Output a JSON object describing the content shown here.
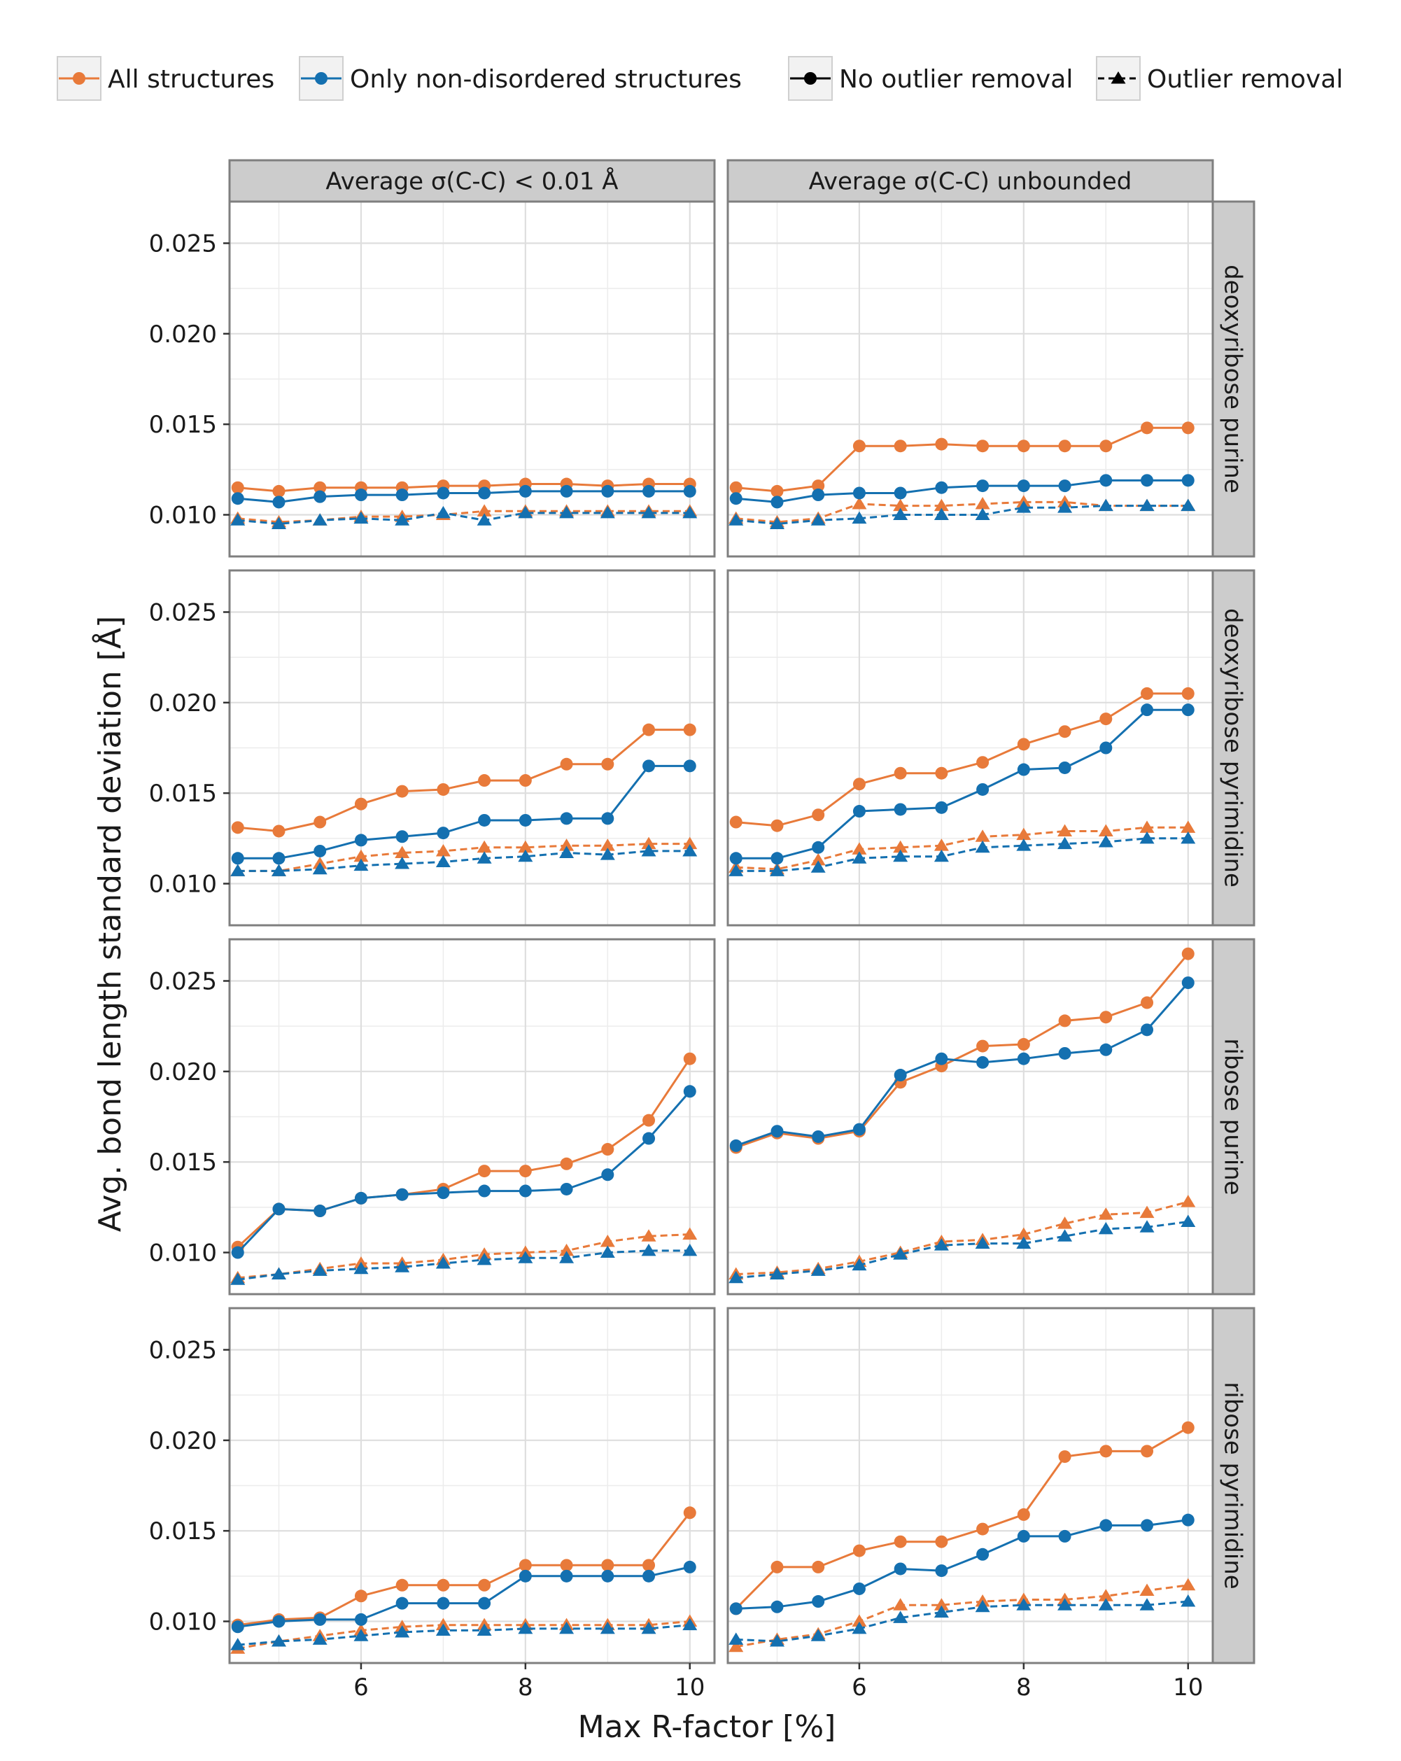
{
  "legend": {
    "entries": [
      {
        "label": "All structures",
        "kind": "color",
        "color": "#E87A3A"
      },
      {
        "label": "Only non-disordered structures",
        "kind": "color",
        "color": "#1470B0"
      },
      {
        "label": "No outlier removal",
        "kind": "style",
        "marker": "circle",
        "dash": "solid"
      },
      {
        "label": "Outlier removal",
        "kind": "style",
        "marker": "triangle",
        "dash": "dashed"
      }
    ]
  },
  "chart_data": {
    "type": "line",
    "xlabel": "Max R-factor [%]",
    "ylabel": "Avg. bond length standard deviation [Å]",
    "xlim": [
      4.4,
      10.3
    ],
    "ylim": [
      0.0077,
      0.0273
    ],
    "xticks": [
      6,
      8,
      10
    ],
    "xtick_labels": [
      "6",
      "8",
      "10"
    ],
    "yticks": [
      0.01,
      0.015,
      0.02,
      0.025
    ],
    "ytick_labels": [
      "0.010",
      "0.015",
      "0.020",
      "0.025"
    ],
    "grid": true,
    "legend_position": "top",
    "x": [
      4.5,
      5,
      5.5,
      6,
      6.5,
      7,
      7.5,
      8,
      8.5,
      9,
      9.5,
      10
    ],
    "col_labels": [
      "Average σ(C-C) < 0.01 Å",
      "Average σ(C-C) unbounded"
    ],
    "row_labels": [
      "deoxyribose purine",
      "deoxyribose pyrimidine",
      "ribose purine",
      "ribose pyrimidine"
    ],
    "colors": {
      "All structures": "#E87A3A",
      "Only non-disordered structures": "#1470B0"
    },
    "panels": [
      {
        "row": 0,
        "col": 0,
        "series": [
          {
            "group": "All structures",
            "style": "No outlier removal",
            "values": [
              0.0115,
              0.0113,
              0.0115,
              0.0115,
              0.0115,
              0.0116,
              0.0116,
              0.0117,
              0.0117,
              0.0116,
              0.0117,
              0.0117
            ]
          },
          {
            "group": "Only non-disordered structures",
            "style": "No outlier removal",
            "values": [
              0.0109,
              0.0107,
              0.011,
              0.0111,
              0.0111,
              0.0112,
              0.0112,
              0.0113,
              0.0113,
              0.0113,
              0.0113,
              0.0113
            ]
          },
          {
            "group": "All structures",
            "style": "Outlier removal",
            "values": [
              0.0098,
              0.0096,
              0.0097,
              0.0099,
              0.0099,
              0.01,
              0.0102,
              0.0102,
              0.0102,
              0.0102,
              0.0102,
              0.0102
            ]
          },
          {
            "group": "Only non-disordered structures",
            "style": "Outlier removal",
            "values": [
              0.0097,
              0.0095,
              0.0097,
              0.0098,
              0.0097,
              0.0101,
              0.0097,
              0.0101,
              0.0101,
              0.0101,
              0.0101,
              0.0101
            ]
          }
        ]
      },
      {
        "row": 0,
        "col": 1,
        "series": [
          {
            "group": "All structures",
            "style": "No outlier removal",
            "values": [
              0.0115,
              0.0113,
              0.0116,
              0.0138,
              0.0138,
              0.0139,
              0.0138,
              0.0138,
              0.0138,
              0.0138,
              0.0148,
              0.0148
            ]
          },
          {
            "group": "Only non-disordered structures",
            "style": "No outlier removal",
            "values": [
              0.0109,
              0.0107,
              0.0111,
              0.0112,
              0.0112,
              0.0115,
              0.0116,
              0.0116,
              0.0116,
              0.0119,
              0.0119,
              0.0119
            ]
          },
          {
            "group": "All structures",
            "style": "Outlier removal",
            "values": [
              0.0098,
              0.0096,
              0.0098,
              0.0106,
              0.0105,
              0.0105,
              0.0106,
              0.0107,
              0.0107,
              0.0105,
              0.0105,
              0.0105
            ]
          },
          {
            "group": "Only non-disordered structures",
            "style": "Outlier removal",
            "values": [
              0.0097,
              0.0095,
              0.0097,
              0.0098,
              0.01,
              0.01,
              0.01,
              0.0104,
              0.0104,
              0.0105,
              0.0105,
              0.0105
            ]
          }
        ]
      },
      {
        "row": 1,
        "col": 0,
        "series": [
          {
            "group": "All structures",
            "style": "No outlier removal",
            "values": [
              0.0131,
              0.0129,
              0.0134,
              0.0144,
              0.0151,
              0.0152,
              0.0157,
              0.0157,
              0.0166,
              0.0166,
              0.0185,
              0.0185
            ]
          },
          {
            "group": "Only non-disordered structures",
            "style": "No outlier removal",
            "values": [
              0.0114,
              0.0114,
              0.0118,
              0.0124,
              0.0126,
              0.0128,
              0.0135,
              0.0135,
              0.0136,
              0.0136,
              0.0165,
              0.0165
            ]
          },
          {
            "group": "All structures",
            "style": "Outlier removal",
            "values": [
              0.0107,
              0.0107,
              0.0111,
              0.0115,
              0.0117,
              0.0118,
              0.012,
              0.012,
              0.0121,
              0.0121,
              0.0122,
              0.0122
            ]
          },
          {
            "group": "Only non-disordered structures",
            "style": "Outlier removal",
            "values": [
              0.0107,
              0.0107,
              0.0108,
              0.011,
              0.0111,
              0.0112,
              0.0114,
              0.0115,
              0.0117,
              0.0116,
              0.0118,
              0.0118
            ]
          }
        ]
      },
      {
        "row": 1,
        "col": 1,
        "series": [
          {
            "group": "All structures",
            "style": "No outlier removal",
            "values": [
              0.0134,
              0.0132,
              0.0138,
              0.0155,
              0.0161,
              0.0161,
              0.0167,
              0.0177,
              0.0184,
              0.0191,
              0.0205,
              0.0205
            ]
          },
          {
            "group": "Only non-disordered structures",
            "style": "No outlier removal",
            "values": [
              0.0114,
              0.0114,
              0.012,
              0.014,
              0.0141,
              0.0142,
              0.0152,
              0.0163,
              0.0164,
              0.0175,
              0.0196,
              0.0196
            ]
          },
          {
            "group": "All structures",
            "style": "Outlier removal",
            "values": [
              0.0109,
              0.0108,
              0.0113,
              0.0119,
              0.012,
              0.0121,
              0.0126,
              0.0127,
              0.0129,
              0.0129,
              0.0131,
              0.0131
            ]
          },
          {
            "group": "Only non-disordered structures",
            "style": "Outlier removal",
            "values": [
              0.0107,
              0.0107,
              0.0109,
              0.0114,
              0.0115,
              0.0115,
              0.012,
              0.0121,
              0.0122,
              0.0123,
              0.0125,
              0.0125
            ]
          }
        ]
      },
      {
        "row": 2,
        "col": 0,
        "series": [
          {
            "group": "All structures",
            "style": "No outlier removal",
            "values": [
              0.0103,
              0.0124,
              0.0123,
              0.013,
              0.0132,
              0.0135,
              0.0145,
              0.0145,
              0.0149,
              0.0157,
              0.0173,
              0.0207
            ]
          },
          {
            "group": "Only non-disordered structures",
            "style": "No outlier removal",
            "values": [
              0.01,
              0.0124,
              0.0123,
              0.013,
              0.0132,
              0.0133,
              0.0134,
              0.0134,
              0.0135,
              0.0143,
              0.0163,
              0.0189
            ]
          },
          {
            "group": "All structures",
            "style": "Outlier removal",
            "values": [
              0.0086,
              0.0088,
              0.0091,
              0.0094,
              0.0094,
              0.0096,
              0.0099,
              0.01,
              0.0101,
              0.0106,
              0.0109,
              0.011
            ]
          },
          {
            "group": "Only non-disordered structures",
            "style": "Outlier removal",
            "values": [
              0.0085,
              0.0088,
              0.009,
              0.0091,
              0.0092,
              0.0094,
              0.0096,
              0.0097,
              0.0097,
              0.01,
              0.0101,
              0.0101
            ]
          }
        ]
      },
      {
        "row": 2,
        "col": 1,
        "series": [
          {
            "group": "All structures",
            "style": "No outlier removal",
            "values": [
              0.0158,
              0.0166,
              0.0163,
              0.0167,
              0.0194,
              0.0203,
              0.0214,
              0.0215,
              0.0228,
              0.023,
              0.0238,
              0.0265
            ]
          },
          {
            "group": "Only non-disordered structures",
            "style": "No outlier removal",
            "values": [
              0.0159,
              0.0167,
              0.0164,
              0.0168,
              0.0198,
              0.0207,
              0.0205,
              0.0207,
              0.021,
              0.0212,
              0.0223,
              0.0249
            ]
          },
          {
            "group": "All structures",
            "style": "Outlier removal",
            "values": [
              0.0088,
              0.0089,
              0.0091,
              0.0095,
              0.01,
              0.0106,
              0.0107,
              0.011,
              0.0116,
              0.0121,
              0.0122,
              0.0128
            ]
          },
          {
            "group": "Only non-disordered structures",
            "style": "Outlier removal",
            "values": [
              0.0086,
              0.0088,
              0.009,
              0.0093,
              0.0099,
              0.0104,
              0.0105,
              0.0105,
              0.0109,
              0.0113,
              0.0114,
              0.0117
            ]
          }
        ]
      },
      {
        "row": 3,
        "col": 0,
        "series": [
          {
            "group": "All structures",
            "style": "No outlier removal",
            "values": [
              0.0098,
              0.0101,
              0.0102,
              0.0114,
              0.012,
              0.012,
              0.012,
              0.0131,
              0.0131,
              0.0131,
              0.0131,
              0.016
            ]
          },
          {
            "group": "Only non-disordered structures",
            "style": "No outlier removal",
            "values": [
              0.0097,
              0.01,
              0.0101,
              0.0101,
              0.011,
              0.011,
              0.011,
              0.0125,
              0.0125,
              0.0125,
              0.0125,
              0.013
            ]
          },
          {
            "group": "All structures",
            "style": "Outlier removal",
            "values": [
              0.0085,
              0.0089,
              0.0092,
              0.0095,
              0.0097,
              0.0098,
              0.0098,
              0.0098,
              0.0098,
              0.0098,
              0.0098,
              0.01
            ]
          },
          {
            "group": "Only non-disordered structures",
            "style": "Outlier removal",
            "values": [
              0.0087,
              0.0089,
              0.009,
              0.0092,
              0.0094,
              0.0095,
              0.0095,
              0.0096,
              0.0096,
              0.0096,
              0.0096,
              0.0098
            ]
          }
        ]
      },
      {
        "row": 3,
        "col": 1,
        "series": [
          {
            "group": "All structures",
            "style": "No outlier removal",
            "values": [
              0.0107,
              0.013,
              0.013,
              0.0139,
              0.0144,
              0.0144,
              0.0151,
              0.0159,
              0.0191,
              0.0194,
              0.0194,
              0.0207
            ]
          },
          {
            "group": "Only non-disordered structures",
            "style": "No outlier removal",
            "values": [
              0.0107,
              0.0108,
              0.0111,
              0.0118,
              0.0129,
              0.0128,
              0.0137,
              0.0147,
              0.0147,
              0.0153,
              0.0153,
              0.0156
            ]
          },
          {
            "group": "All structures",
            "style": "Outlier removal",
            "values": [
              0.0086,
              0.009,
              0.0093,
              0.01,
              0.0109,
              0.0109,
              0.0111,
              0.0112,
              0.0112,
              0.0114,
              0.0117,
              0.012
            ]
          },
          {
            "group": "Only non-disordered structures",
            "style": "Outlier removal",
            "values": [
              0.009,
              0.0089,
              0.0092,
              0.0096,
              0.0102,
              0.0105,
              0.0108,
              0.0109,
              0.0109,
              0.0109,
              0.0109,
              0.0111
            ]
          }
        ]
      }
    ]
  }
}
